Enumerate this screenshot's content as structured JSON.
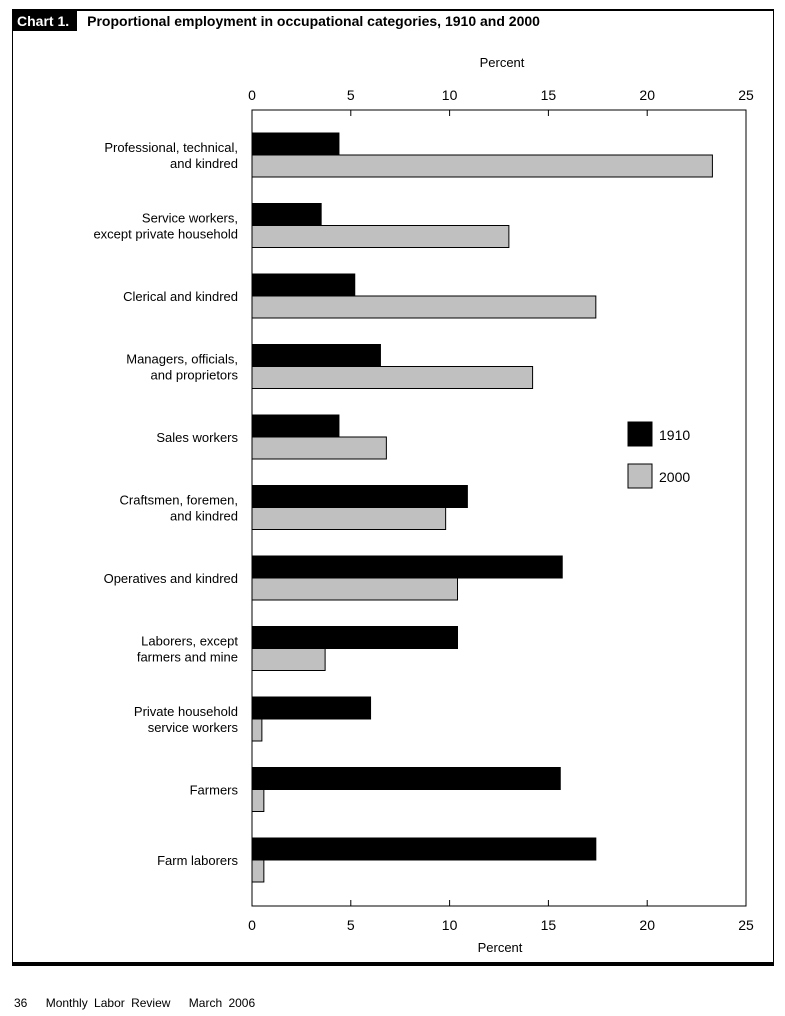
{
  "header": {
    "tag": "Chart 1.",
    "title": "Proportional employment in occupational categories, 1910 and 2000"
  },
  "footer": {
    "page": "36",
    "journal": "Monthly Labor Review",
    "date": "March 2006"
  },
  "colors": {
    "s1910": "#000000",
    "s2000": "#c0c0c0"
  },
  "chart_data": {
    "type": "bar",
    "orientation": "horizontal",
    "title": "Proportional employment in occupational categories, 1910 and 2000",
    "xlabel": "Percent",
    "xlim": [
      0,
      25
    ],
    "xticks": [
      0,
      5,
      10,
      15,
      20,
      25
    ],
    "grid": false,
    "legend_position": "right",
    "categories": [
      [
        "Professional, technical,",
        "and kindred"
      ],
      [
        "Service workers,",
        "except private household"
      ],
      [
        "Clerical and kindred"
      ],
      [
        "Managers, officials,",
        "and proprietors"
      ],
      [
        "Sales workers"
      ],
      [
        "Craftsmen, foremen,",
        "and kindred"
      ],
      [
        "Operatives and kindred"
      ],
      [
        "Laborers, except",
        "farmers and mine"
      ],
      [
        "Private household",
        "service workers"
      ],
      [
        "Farmers"
      ],
      [
        "Farm laborers"
      ]
    ],
    "series": [
      {
        "name": "1910",
        "values": [
          4.4,
          3.5,
          5.2,
          6.5,
          4.4,
          10.9,
          15.7,
          10.4,
          6.0,
          15.6,
          17.4
        ]
      },
      {
        "name": "2000",
        "values": [
          23.3,
          13.0,
          17.4,
          14.2,
          6.8,
          9.8,
          10.4,
          3.7,
          0.5,
          0.6,
          0.6
        ]
      }
    ]
  }
}
